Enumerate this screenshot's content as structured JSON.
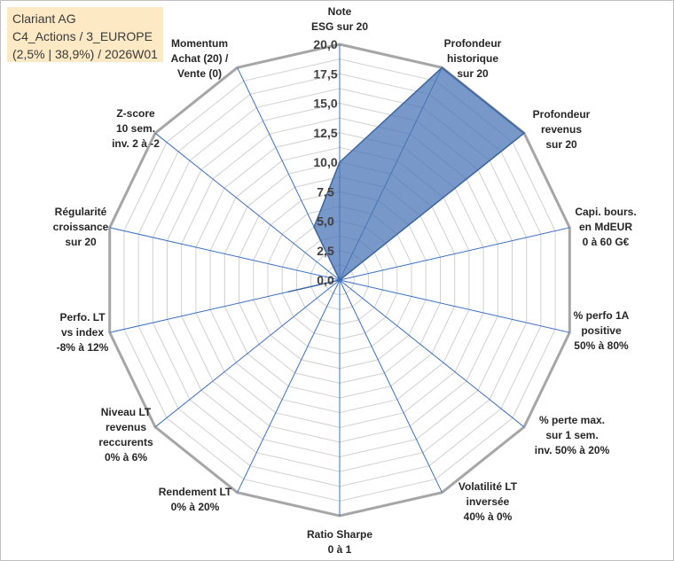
{
  "chart_data": {
    "type": "radar",
    "title_lines": [
      "Clariant AG",
      "C4_Actions / 3_EUROPE",
      "(2,5% | 38,9%) / 2026W01"
    ],
    "axes": [
      [
        "Note",
        "ESG sur 20"
      ],
      [
        "Profondeur",
        "historique",
        "sur 20"
      ],
      [
        "Profondeur",
        "revenus",
        "sur 20"
      ],
      [
        "Capi. bours.",
        "en MdEUR",
        "0 à 60 G€"
      ],
      [
        "% perfo 1A",
        "positive",
        "50% à 80%"
      ],
      [
        "% perte max.",
        "sur 1 sem.",
        "inv. 50% à 20%"
      ],
      [
        "Volatilité LT",
        "inversée",
        "40% à 0%"
      ],
      [
        "Ratio Sharpe",
        "0 à 1"
      ],
      [
        "Rendement LT",
        "0% à 20%"
      ],
      [
        "Niveau LT",
        "revenus",
        "reccurents",
        "0% à 6%"
      ],
      [
        "Perfo. LT",
        "vs index",
        "-8% à 12%"
      ],
      [
        "Régularité",
        "croissance",
        "sur 20"
      ],
      [
        "Z-score",
        "10 sem.",
        "inv. 2 à -2"
      ],
      [
        "Momentum",
        "Achat (20) /",
        "Vente (0)"
      ]
    ],
    "values": [
      10,
      20,
      20,
      0,
      0,
      0,
      0,
      0,
      0,
      0,
      4.5,
      0,
      0,
      5
    ],
    "rlim": [
      0,
      20
    ],
    "r_ticks": [
      "0,0",
      "2,5",
      "5,0",
      "7,5",
      "10,0",
      "12,5",
      "15,0",
      "17,5",
      "20,0"
    ],
    "grid": true,
    "colors": {
      "fill": "#4a76b6",
      "line": "#3d65a0",
      "spoke": "#3a6fc4",
      "ring": "#d0d0d0",
      "outer": "#a6a6a6"
    }
  }
}
